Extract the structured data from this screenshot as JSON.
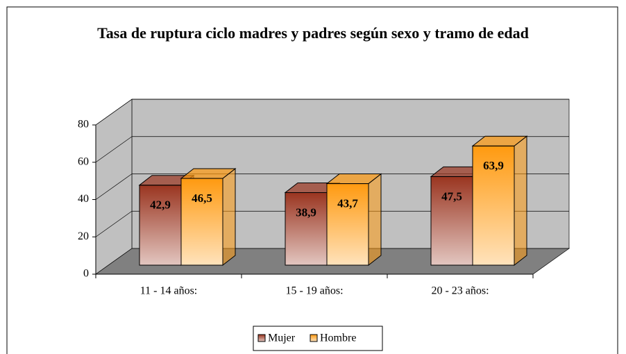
{
  "chart_data": {
    "type": "bar3d",
    "title": "Tasa de ruptura ciclo madres y padres según sexo y tramo de edad",
    "categories": [
      "11 - 14 años:",
      "15 - 19 años:",
      "20 - 23 años:"
    ],
    "series": [
      {
        "name": "Mujer",
        "color": "#9a3520",
        "values": [
          42.9,
          38.9,
          47.5
        ],
        "value_labels": [
          "42,9",
          "38,9",
          "47,5"
        ]
      },
      {
        "name": "Hombre",
        "color": "#ff9a10",
        "values": [
          46.5,
          43.7,
          63.9
        ],
        "value_labels": [
          "46,5",
          "43,7",
          "63,9"
        ]
      }
    ],
    "ylim": [
      0,
      80
    ],
    "yticks": [
      0,
      20,
      40,
      60,
      80
    ],
    "grid": true,
    "legend": "bottom"
  }
}
